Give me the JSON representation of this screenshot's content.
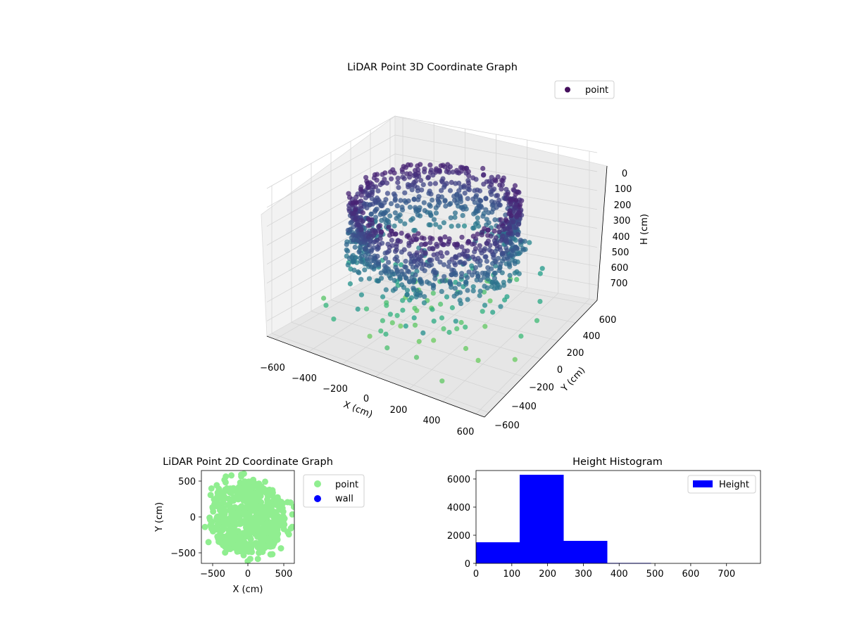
{
  "chart_data": [
    {
      "type": "scatter",
      "title": "LiDAR Point 3D Coordinate Graph",
      "xlabel": "X (cm)",
      "ylabel": "Y (cm)",
      "zlabel": "H (cm)",
      "x_ticks": [
        "−600",
        "−400",
        "−200",
        "0",
        "200",
        "400",
        "600"
      ],
      "y_ticks": [
        "−600",
        "−400",
        "−200",
        "0",
        "200",
        "400",
        "600"
      ],
      "z_ticks": [
        "0",
        "100",
        "200",
        "300",
        "400",
        "500",
        "600",
        "700"
      ],
      "xlim": [
        -650,
        650
      ],
      "ylim": [
        -650,
        650
      ],
      "zlim": [
        0,
        780
      ],
      "z_inverted": true,
      "colormap": "viridis",
      "legend": [
        "point"
      ],
      "legend_color": "#440f5c",
      "legend_position": "top-right",
      "grid": true
    },
    {
      "type": "scatter",
      "title": "LiDAR Point 2D Coordinate Graph",
      "xlabel": "X (cm)",
      "ylabel": "Y (cm)",
      "x_ticks": [
        "−500",
        "0",
        "500"
      ],
      "y_ticks": [
        "500",
        "0",
        "−500"
      ],
      "xlim": [
        -650,
        650
      ],
      "ylim": [
        -650,
        650
      ],
      "series": [
        {
          "name": "point",
          "color": "#90ee90"
        },
        {
          "name": "wall",
          "color": "#0000ff"
        }
      ],
      "legend_position": "outside-right",
      "grid": false
    },
    {
      "type": "bar",
      "title": "Height Histogram",
      "x_ticks": [
        "0",
        "100",
        "200",
        "300",
        "400",
        "500",
        "600",
        "700"
      ],
      "y_ticks": [
        "0",
        "2000",
        "4000",
        "6000"
      ],
      "xlim": [
        0,
        795
      ],
      "ylim": [
        0,
        6600
      ],
      "bins": [
        {
          "start": 0,
          "end": 122,
          "count": 1500
        },
        {
          "start": 122,
          "end": 245,
          "count": 6300
        },
        {
          "start": 245,
          "end": 367,
          "count": 1600
        },
        {
          "start": 367,
          "end": 489,
          "count": 30
        },
        {
          "start": 489,
          "end": 612,
          "count": 0
        },
        {
          "start": 612,
          "end": 734,
          "count": 0
        }
      ],
      "series": [
        {
          "name": "Height",
          "color": "#0000ff"
        }
      ],
      "legend_position": "top-right",
      "grid": false
    }
  ]
}
